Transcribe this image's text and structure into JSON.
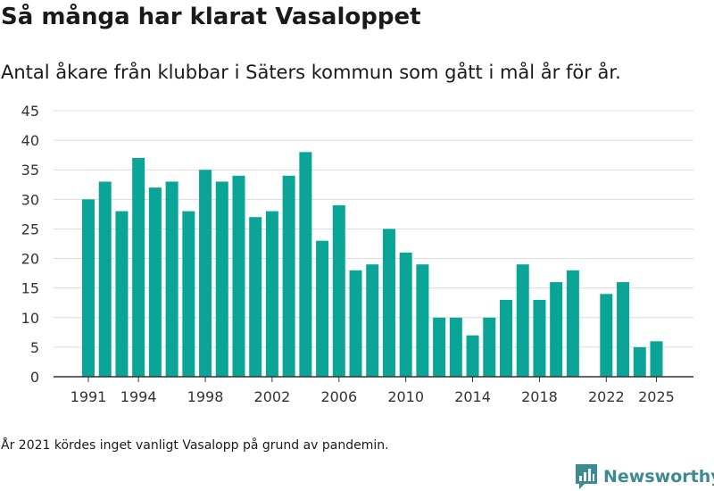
{
  "chart_data": {
    "type": "bar",
    "title": "Så många har klarat Vasaloppet",
    "subtitle": "Antal åkare från klubbar i Säters kommun som gått i mål år för år.",
    "categories": [
      1991,
      1992,
      1993,
      1994,
      1995,
      1996,
      1997,
      1998,
      1999,
      2000,
      2001,
      2002,
      2003,
      2004,
      2005,
      2006,
      2007,
      2008,
      2009,
      2010,
      2011,
      2012,
      2013,
      2014,
      2015,
      2016,
      2017,
      2018,
      2019,
      2020,
      2021,
      2022,
      2023,
      2024,
      2025
    ],
    "values": [
      30,
      33,
      28,
      37,
      32,
      33,
      28,
      35,
      33,
      34,
      27,
      28,
      34,
      38,
      23,
      29,
      18,
      19,
      25,
      21,
      19,
      10,
      10,
      7,
      10,
      13,
      19,
      13,
      16,
      18,
      null,
      14,
      16,
      5,
      6
    ],
    "x_tick_labels": [
      "1991",
      "1994",
      "1998",
      "2002",
      "2006",
      "2010",
      "2014",
      "2018",
      "2022",
      "2025"
    ],
    "y_ticks": [
      0,
      5,
      10,
      15,
      20,
      25,
      30,
      35,
      40,
      45
    ],
    "ylim": [
      0,
      45
    ],
    "xlabel": "",
    "ylabel": "",
    "bar_color": "#0aa597",
    "grid": true,
    "legend": "none",
    "footnote": "År 2021 kördes inget vanligt Vasalopp på grund av pandemin."
  },
  "brand": {
    "name": "Newsworthy",
    "logo_icon": "newsworthy-logo-icon",
    "color": "#3d8a93"
  }
}
